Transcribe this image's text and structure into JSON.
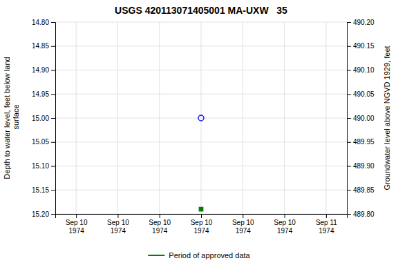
{
  "chart_data": {
    "type": "scatter",
    "title": "USGS 420113071405001 MA-UXW   35",
    "y_label": "Depth to water level, feet below land\n surface",
    "y2_label": "Groundwater level above NGVD 1929, feet",
    "categories": [
      "Sep 10\n1974",
      "Sep 10\n1974",
      "Sep 10\n1974",
      "Sep 10\n1974",
      "Sep 10\n1974",
      "Sep 10\n1974",
      "Sep 11\n1974"
    ],
    "series": [
      {
        "color": "#0000ff",
        "marker": "circle-open",
        "values": [
          null,
          null,
          null,
          15.0,
          null,
          null,
          null
        ]
      },
      {
        "name": "Period of approved data",
        "color": "#008000",
        "marker": "square",
        "values": [
          null,
          null,
          null,
          15.19,
          null,
          null,
          null
        ]
      }
    ],
    "ylim": [
      15.2,
      14.8
    ],
    "yticks": [
      {
        "value": 14.8,
        "label": "14.80"
      },
      14.85,
      {
        "value": 14.9,
        "label": "14.90"
      },
      14.95,
      {
        "value": 15.0,
        "label": "15.00"
      },
      15.05,
      {
        "value": 15.1,
        "label": "15.10"
      },
      15.15,
      {
        "value": 15.2,
        "label": "15.20"
      }
    ],
    "y2lim": [
      489.8,
      490.2
    ],
    "y2ticks": [
      {
        "value": 489.8,
        "label": "489.80"
      },
      489.85,
      {
        "value": 489.9,
        "label": "489.90"
      },
      489.95,
      {
        "value": 490.0,
        "label": "490.00"
      },
      490.05,
      {
        "value": 490.1,
        "label": "490.10"
      },
      490.15,
      {
        "value": 490.2,
        "label": "490.20"
      }
    ],
    "grid": true,
    "legend": "bottom"
  }
}
